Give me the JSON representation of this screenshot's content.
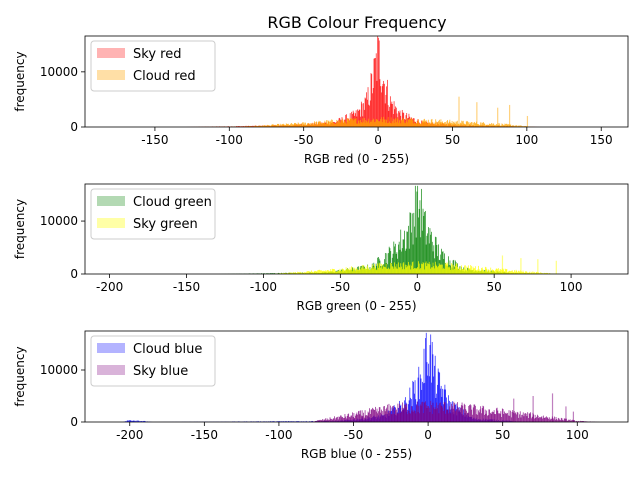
{
  "figure_title": "RGB Colour Frequency",
  "chart_data": [
    {
      "type": "histogram",
      "xlabel": "RGB red (0 - 255)",
      "ylabel": "frequency",
      "xlim": [
        -197,
        168
      ],
      "ylim": [
        0,
        16500
      ],
      "xticks": [
        -150,
        -100,
        -50,
        0,
        50,
        100,
        150
      ],
      "yticks": [
        0,
        10000
      ],
      "legend": "top-left",
      "series": [
        {
          "name": "Sky red",
          "color": "#ff0000",
          "legend_color": "#ffb3b3",
          "peaks": [
            [
              -130,
              0
            ],
            [
              -60,
              300
            ],
            [
              -30,
              900
            ],
            [
              -15,
              2500
            ],
            [
              -8,
              5000
            ],
            [
              -4,
              9000
            ],
            [
              0,
              15000
            ],
            [
              4,
              9000
            ],
            [
              8,
              5000
            ],
            [
              15,
              2500
            ],
            [
              30,
              800
            ],
            [
              60,
              300
            ],
            [
              110,
              0
            ]
          ]
        },
        {
          "name": "Cloud red",
          "color": "#ffa500",
          "legend_color": "#ffdfa6",
          "peaks": [
            [
              -125,
              0
            ],
            [
              -90,
              100
            ],
            [
              -50,
              700
            ],
            [
              -20,
              1300
            ],
            [
              0,
              1500
            ],
            [
              20,
              1400
            ],
            [
              50,
              1000
            ],
            [
              80,
              600
            ],
            [
              105,
              0
            ]
          ],
          "spikes": [
            [
              54,
              5500
            ],
            [
              66,
              4500
            ],
            [
              80,
              3500
            ],
            [
              88,
              4000
            ],
            [
              100,
              2000
            ]
          ]
        }
      ]
    },
    {
      "type": "histogram",
      "xlabel": "RGB green (0 - 255)",
      "ylabel": "frequency",
      "xlim": [
        -216,
        137
      ],
      "ylim": [
        0,
        17000
      ],
      "xticks": [
        -200,
        -150,
        -100,
        -50,
        0,
        50,
        100
      ],
      "yticks": [
        0,
        10000
      ],
      "legend": "top-left",
      "series": [
        {
          "name": "Cloud green",
          "color": "#008000",
          "legend_color": "#b3d9b3",
          "peaks": [
            [
              -130,
              0
            ],
            [
              -60,
              300
            ],
            [
              -30,
              1500
            ],
            [
              -15,
              5000
            ],
            [
              -5,
              9500
            ],
            [
              0,
              16500
            ],
            [
              5,
              9500
            ],
            [
              15,
              4000
            ],
            [
              30,
              1000
            ],
            [
              60,
              200
            ],
            [
              95,
              0
            ]
          ]
        },
        {
          "name": "Sky green",
          "color": "#ffff00",
          "legend_color": "#ffffa6",
          "peaks": [
            [
              -95,
              0
            ],
            [
              -60,
              700
            ],
            [
              -40,
              1200
            ],
            [
              -20,
              1800
            ],
            [
              0,
              1900
            ],
            [
              20,
              1700
            ],
            [
              40,
              1200
            ],
            [
              60,
              700
            ],
            [
              92,
              0
            ]
          ],
          "spikes": [
            [
              55,
              3500
            ],
            [
              67,
              3000
            ],
            [
              78,
              2800
            ],
            [
              90,
              2500
            ]
          ]
        }
      ]
    },
    {
      "type": "histogram",
      "xlabel": "RGB blue (0 - 255)",
      "ylabel": "frequency",
      "xlim": [
        -230,
        134
      ],
      "ylim": [
        0,
        17500
      ],
      "xticks": [
        -200,
        -150,
        -100,
        -50,
        0,
        50,
        100
      ],
      "yticks": [
        0,
        10000
      ],
      "legend": "top-left",
      "series": [
        {
          "name": "Cloud blue",
          "color": "#0000ff",
          "legend_color": "#b3b3ff",
          "peaks": [
            [
              -205,
              0
            ],
            [
              -200,
              400
            ],
            [
              -195,
              300
            ],
            [
              -185,
              0
            ],
            [
              -60,
              200
            ],
            [
              -30,
              1200
            ],
            [
              -15,
              4000
            ],
            [
              -5,
              9000
            ],
            [
              0,
              17000
            ],
            [
              5,
              9000
            ],
            [
              15,
              3500
            ],
            [
              30,
              700
            ],
            [
              60,
              100
            ],
            [
              95,
              0
            ]
          ]
        },
        {
          "name": "Sky blue",
          "color": "#800080",
          "legend_color": "#d9b3d9",
          "peaks": [
            [
              -80,
              0
            ],
            [
              -50,
              1500
            ],
            [
              -25,
              2800
            ],
            [
              0,
              3300
            ],
            [
              20,
              3000
            ],
            [
              45,
              2200
            ],
            [
              70,
              1400
            ],
            [
              100,
              200
            ],
            [
              115,
              0
            ]
          ],
          "spikes": [
            [
              57,
              4500
            ],
            [
              70,
              5000
            ],
            [
              83,
              5500
            ],
            [
              92,
              3000
            ],
            [
              97,
              2000
            ]
          ]
        }
      ]
    }
  ]
}
